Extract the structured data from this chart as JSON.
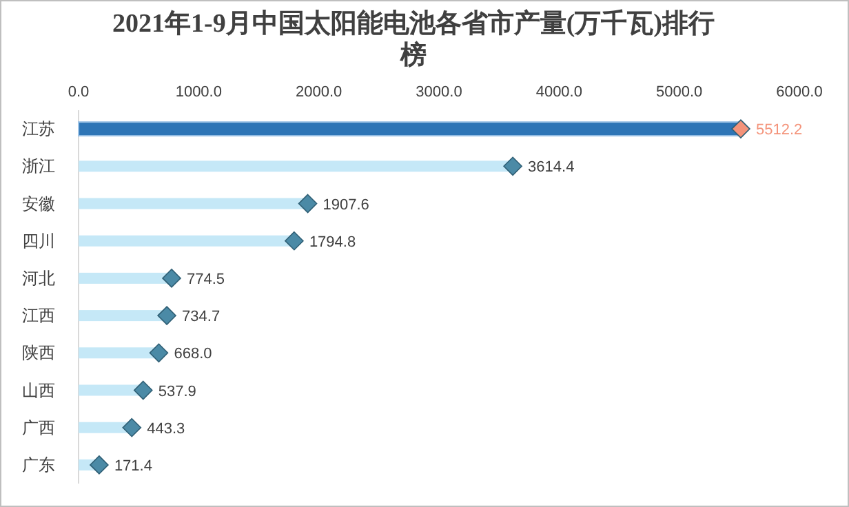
{
  "chart_data": {
    "type": "lollipop",
    "orientation": "horizontal",
    "title": "2021年1-9月中国太阳能电池各省市产量(万千瓦)排行榜",
    "categories": [
      "江苏",
      "浙江",
      "安徽",
      "四川",
      "河北",
      "江西",
      "陕西",
      "山西",
      "广西",
      "广东"
    ],
    "series": [
      {
        "type": "bar",
        "values": [
          5512.2,
          3614.4,
          1907.6,
          1794.8,
          774.5,
          734.7,
          668.0,
          537.9,
          443.3,
          171.4
        ],
        "colors": [
          "#2e75b6",
          "#c5e8f7",
          "#c5e8f7",
          "#c5e8f7",
          "#c5e8f7",
          "#c5e8f7",
          "#c5e8f7",
          "#c5e8f7",
          "#c5e8f7",
          "#c5e8f7"
        ]
      },
      {
        "type": "scatter",
        "marker": "diamond",
        "values": [
          5512.2,
          3614.4,
          1907.6,
          1794.8,
          774.5,
          734.7,
          668.0,
          537.9,
          443.3,
          171.4
        ],
        "colors": [
          "#f4937a",
          "#4b8aa6",
          "#4b8aa6",
          "#4b8aa6",
          "#4b8aa6",
          "#4b8aa6",
          "#4b8aa6",
          "#4b8aa6",
          "#4b8aa6",
          "#4b8aa6"
        ]
      }
    ],
    "value_labels": [
      "5512.2",
      "3614.4",
      "1907.6",
      "1794.8",
      "774.5",
      "734.7",
      "668.0",
      "537.9",
      "443.3",
      "171.4"
    ],
    "xlim": [
      0,
      6000
    ],
    "xticks": [
      {
        "value": 0,
        "label": "0.0"
      },
      {
        "value": 1000,
        "label": "1000.0"
      },
      {
        "value": 2000,
        "label": "2000.0"
      },
      {
        "value": 3000,
        "label": "3000.0"
      },
      {
        "value": 4000,
        "label": "4000.0"
      },
      {
        "value": 5000,
        "label": "5000.0"
      },
      {
        "value": 6000,
        "label": "6000.0"
      }
    ],
    "grid": false
  }
}
